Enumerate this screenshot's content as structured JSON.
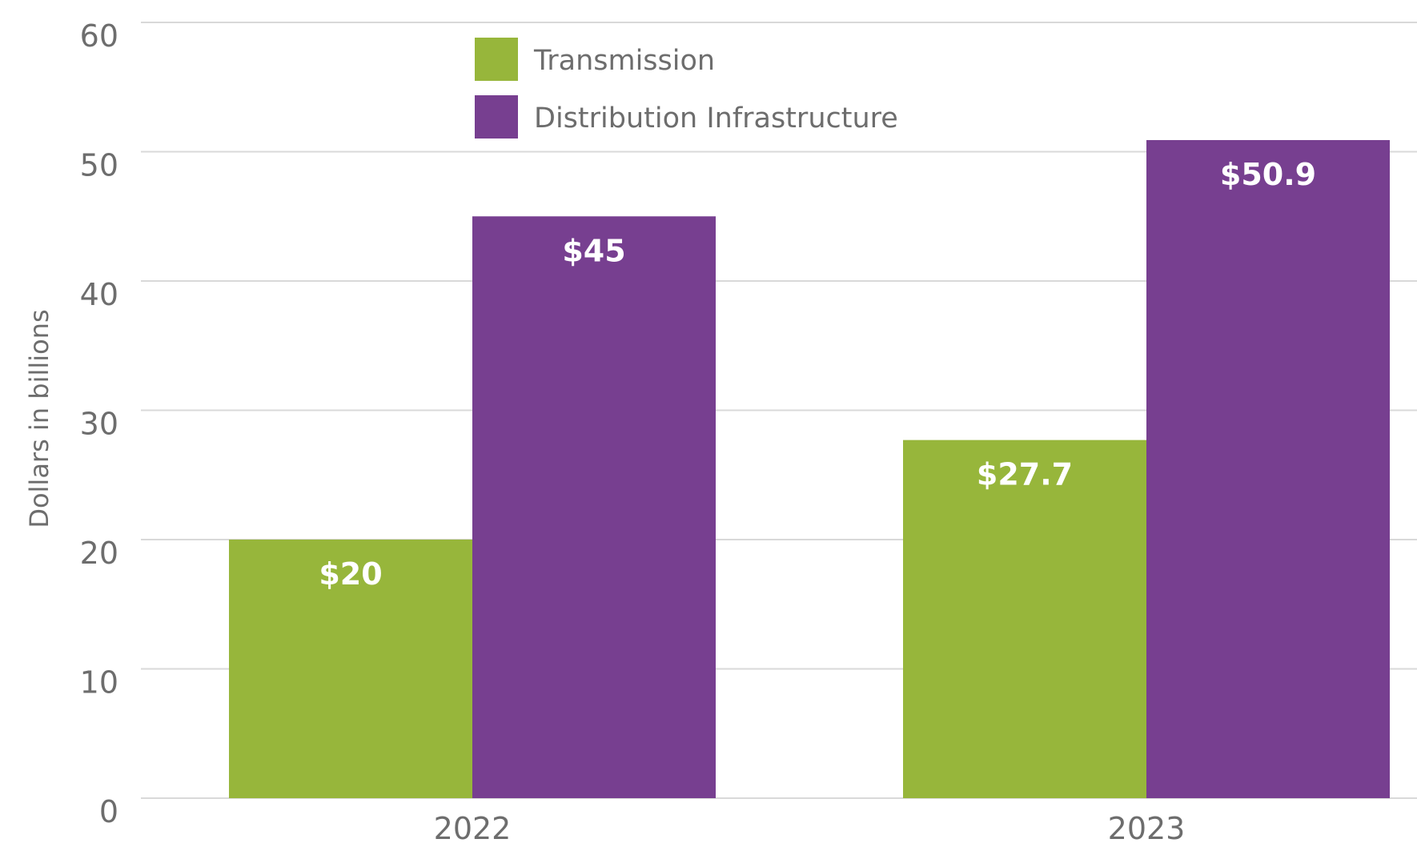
{
  "chart_data": {
    "type": "bar",
    "categories": [
      "2022",
      "2023"
    ],
    "series": [
      {
        "name": "Transmission",
        "values": [
          20,
          27.7
        ],
        "color": "#97b63b",
        "labels": [
          "$20",
          "$27.7"
        ]
      },
      {
        "name": "Distribution Infrastructure",
        "values": [
          45,
          50.9
        ],
        "color": "#773f90",
        "labels": [
          "$45",
          "$50.9"
        ]
      }
    ],
    "ylabel": "Dollars in billions",
    "xlabel": "",
    "ylim": [
      0,
      60
    ],
    "yticks": [
      0,
      10,
      20,
      30,
      40,
      50,
      60
    ],
    "grid": true,
    "legend": "top-center"
  }
}
